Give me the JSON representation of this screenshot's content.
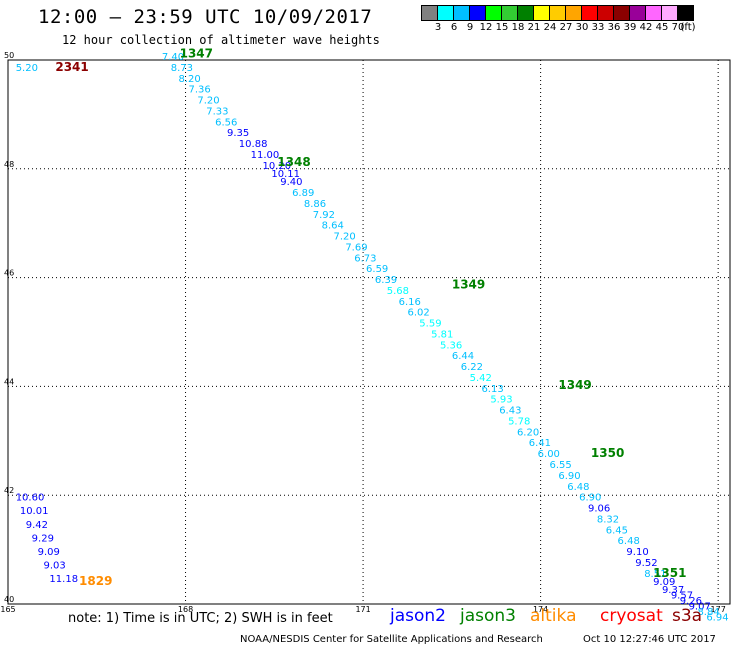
{
  "header": {
    "title": "12:00 — 23:59 UTC 10/09/2017",
    "subtitle": "12 hour collection of altimeter wave heights"
  },
  "color_scale": {
    "colors": [
      "#808080",
      "#00ffff",
      "#00bfff",
      "#0000ff",
      "#00ff00",
      "#33cc33",
      "#008000",
      "#ffff00",
      "#ffcc00",
      "#ffa500",
      "#ff0000",
      "#cc0000",
      "#8b0000",
      "#990099",
      "#ff66ff",
      "#ffaaff",
      "#000000"
    ],
    "labels": [
      "3",
      "6",
      "9",
      "12",
      "15",
      "18",
      "21",
      "24",
      "27",
      "30",
      "33",
      "36",
      "39",
      "42",
      "45",
      "70",
      "(ft)"
    ]
  },
  "note": "note: 1) Time is in UTC; 2) SWH is in feet",
  "satellites": [
    {
      "name": "jason2",
      "color": "#0000ff"
    },
    {
      "name": "jason3",
      "color": "#008000"
    },
    {
      "name": "altika",
      "color": "#ff8c00"
    },
    {
      "name": "cryosat",
      "color": "#ff0000"
    },
    {
      "name": "s3a",
      "color": "#8b0000"
    }
  ],
  "footer": {
    "credit": "NOAA/NESDIS Center for Satellite Applications and Research",
    "timestamp": "Oct 10 12:27:46 UTC 2017"
  },
  "chart_data": {
    "type": "scatter",
    "xlim": [
      165,
      177.2
    ],
    "ylim": [
      40,
      50
    ],
    "x_ticks": [
      165,
      168,
      171,
      174,
      177
    ],
    "x_tick_labels": [
      "165",
      "168",
      "171",
      "174",
      "177"
    ],
    "y_ticks": [
      40,
      42,
      44,
      46,
      48,
      50
    ],
    "y_tick_labels": [
      "40",
      "42",
      "44",
      "46",
      "48",
      "50"
    ],
    "grid": true,
    "points": [
      {
        "lon": 165.13,
        "lat": 49.8,
        "value": "5.20",
        "color": "#00bfff"
      },
      {
        "lon": 167.6,
        "lat": 50.0,
        "value": "7.40",
        "color": "#00bfff"
      },
      {
        "lon": 167.75,
        "lat": 49.8,
        "value": "8.73",
        "color": "#00bfff"
      },
      {
        "lon": 167.88,
        "lat": 49.6,
        "value": "8.20",
        "color": "#00bfff"
      },
      {
        "lon": 168.05,
        "lat": 49.4,
        "value": "7.36",
        "color": "#00bfff"
      },
      {
        "lon": 168.2,
        "lat": 49.2,
        "value": "7.20",
        "color": "#00bfff"
      },
      {
        "lon": 168.35,
        "lat": 49.0,
        "value": "7.33",
        "color": "#00bfff"
      },
      {
        "lon": 168.5,
        "lat": 48.8,
        "value": "6.56",
        "color": "#00bfff"
      },
      {
        "lon": 168.7,
        "lat": 48.6,
        "value": "9.35",
        "color": "#0000ff"
      },
      {
        "lon": 168.9,
        "lat": 48.4,
        "value": "10.88",
        "color": "#0000ff"
      },
      {
        "lon": 169.1,
        "lat": 48.2,
        "value": "11.00",
        "color": "#0000ff"
      },
      {
        "lon": 169.3,
        "lat": 48.0,
        "value": "10.20",
        "color": "#0000ff"
      },
      {
        "lon": 169.45,
        "lat": 47.85,
        "value": "10.11",
        "color": "#0000ff"
      },
      {
        "lon": 169.6,
        "lat": 47.7,
        "value": "9.40",
        "color": "#0000ff"
      },
      {
        "lon": 169.8,
        "lat": 47.5,
        "value": "6.89",
        "color": "#00bfff"
      },
      {
        "lon": 170.0,
        "lat": 47.3,
        "value": "8.86",
        "color": "#00bfff"
      },
      {
        "lon": 170.15,
        "lat": 47.1,
        "value": "7.92",
        "color": "#00bfff"
      },
      {
        "lon": 170.3,
        "lat": 46.9,
        "value": "8.64",
        "color": "#00bfff"
      },
      {
        "lon": 170.5,
        "lat": 46.7,
        "value": "7.20",
        "color": "#00bfff"
      },
      {
        "lon": 170.7,
        "lat": 46.5,
        "value": "7.69",
        "color": "#00bfff"
      },
      {
        "lon": 170.85,
        "lat": 46.3,
        "value": "6.73",
        "color": "#00bfff"
      },
      {
        "lon": 171.05,
        "lat": 46.1,
        "value": "6.59",
        "color": "#00bfff"
      },
      {
        "lon": 171.2,
        "lat": 45.9,
        "value": "6.39",
        "color": "#00bfff"
      },
      {
        "lon": 171.4,
        "lat": 45.7,
        "value": "5.68",
        "color": "#00ffff"
      },
      {
        "lon": 171.6,
        "lat": 45.5,
        "value": "6.16",
        "color": "#00bfff"
      },
      {
        "lon": 171.75,
        "lat": 45.3,
        "value": "6.02",
        "color": "#00bfff"
      },
      {
        "lon": 171.95,
        "lat": 45.1,
        "value": "5.59",
        "color": "#00ffff"
      },
      {
        "lon": 172.15,
        "lat": 44.9,
        "value": "5.81",
        "color": "#00ffff"
      },
      {
        "lon": 172.3,
        "lat": 44.7,
        "value": "5.36",
        "color": "#00ffff"
      },
      {
        "lon": 172.5,
        "lat": 44.5,
        "value": "6.44",
        "color": "#00bfff"
      },
      {
        "lon": 172.65,
        "lat": 44.3,
        "value": "6.22",
        "color": "#00bfff"
      },
      {
        "lon": 172.8,
        "lat": 44.1,
        "value": "5.42",
        "color": "#00ffff"
      },
      {
        "lon": 173.0,
        "lat": 43.9,
        "value": "6.13",
        "color": "#00bfff"
      },
      {
        "lon": 173.15,
        "lat": 43.7,
        "value": "5.93",
        "color": "#00ffff"
      },
      {
        "lon": 173.3,
        "lat": 43.5,
        "value": "6.43",
        "color": "#00bfff"
      },
      {
        "lon": 173.45,
        "lat": 43.3,
        "value": "5.78",
        "color": "#00ffff"
      },
      {
        "lon": 173.6,
        "lat": 43.1,
        "value": "6.20",
        "color": "#00bfff"
      },
      {
        "lon": 173.8,
        "lat": 42.9,
        "value": "6.41",
        "color": "#00bfff"
      },
      {
        "lon": 173.95,
        "lat": 42.7,
        "value": "6.00",
        "color": "#00bfff"
      },
      {
        "lon": 174.15,
        "lat": 42.5,
        "value": "6.55",
        "color": "#00bfff"
      },
      {
        "lon": 174.3,
        "lat": 42.3,
        "value": "6.90",
        "color": "#00bfff"
      },
      {
        "lon": 174.45,
        "lat": 42.1,
        "value": "6.48",
        "color": "#00bfff"
      },
      {
        "lon": 174.65,
        "lat": 41.9,
        "value": "6.90",
        "color": "#00bfff"
      },
      {
        "lon": 174.8,
        "lat": 41.7,
        "value": "9.06",
        "color": "#0000ff"
      },
      {
        "lon": 174.95,
        "lat": 41.5,
        "value": "8.32",
        "color": "#00bfff"
      },
      {
        "lon": 175.1,
        "lat": 41.3,
        "value": "6.45",
        "color": "#00bfff"
      },
      {
        "lon": 175.3,
        "lat": 41.1,
        "value": "6.48",
        "color": "#00bfff"
      },
      {
        "lon": 175.45,
        "lat": 40.9,
        "value": "9.10",
        "color": "#0000ff"
      },
      {
        "lon": 175.6,
        "lat": 40.7,
        "value": "9.52",
        "color": "#0000ff"
      },
      {
        "lon": 175.75,
        "lat": 40.5,
        "value": "8.51",
        "color": "#00bfff"
      },
      {
        "lon": 175.9,
        "lat": 40.35,
        "value": "9.09",
        "color": "#0000ff"
      },
      {
        "lon": 176.05,
        "lat": 40.2,
        "value": "9.37",
        "color": "#0000ff"
      },
      {
        "lon": 176.2,
        "lat": 40.1,
        "value": "9.57",
        "color": "#0000ff"
      },
      {
        "lon": 176.35,
        "lat": 40.0,
        "value": "9.26",
        "color": "#0000ff"
      },
      {
        "lon": 176.5,
        "lat": 39.9,
        "value": "9.07",
        "color": "#0000ff"
      },
      {
        "lon": 176.65,
        "lat": 39.8,
        "value": "8.84",
        "color": "#00bfff"
      },
      {
        "lon": 176.8,
        "lat": 39.7,
        "value": "6.94",
        "color": "#00bfff"
      },
      {
        "lon": 165.13,
        "lat": 41.9,
        "value": "10.60",
        "color": "#0000ff"
      },
      {
        "lon": 165.2,
        "lat": 41.65,
        "value": "10.01",
        "color": "#0000ff"
      },
      {
        "lon": 165.3,
        "lat": 41.4,
        "value": "9.42",
        "color": "#0000ff"
      },
      {
        "lon": 165.4,
        "lat": 41.15,
        "value": "9.29",
        "color": "#0000ff"
      },
      {
        "lon": 165.5,
        "lat": 40.9,
        "value": "9.09",
        "color": "#0000ff"
      },
      {
        "lon": 165.6,
        "lat": 40.65,
        "value": "9.03",
        "color": "#0000ff"
      },
      {
        "lon": 165.7,
        "lat": 40.4,
        "value": "11.18",
        "color": "#0000ff"
      }
    ],
    "pass_labels": [
      {
        "lon": 165.8,
        "lat": 49.8,
        "text": "2341",
        "color": "#8b0000"
      },
      {
        "lon": 167.9,
        "lat": 50.05,
        "text": "1347",
        "color": "#008000"
      },
      {
        "lon": 169.55,
        "lat": 48.05,
        "text": "1348",
        "color": "#008000"
      },
      {
        "lon": 172.5,
        "lat": 45.8,
        "text": "1349",
        "color": "#008000"
      },
      {
        "lon": 174.3,
        "lat": 43.95,
        "text": "1349",
        "color": "#008000"
      },
      {
        "lon": 174.85,
        "lat": 42.7,
        "text": "1350",
        "color": "#008000"
      },
      {
        "lon": 175.9,
        "lat": 40.5,
        "text": "1351",
        "color": "#008000"
      },
      {
        "lon": 166.2,
        "lat": 40.35,
        "text": "1829",
        "color": "#ff8c00"
      }
    ]
  }
}
